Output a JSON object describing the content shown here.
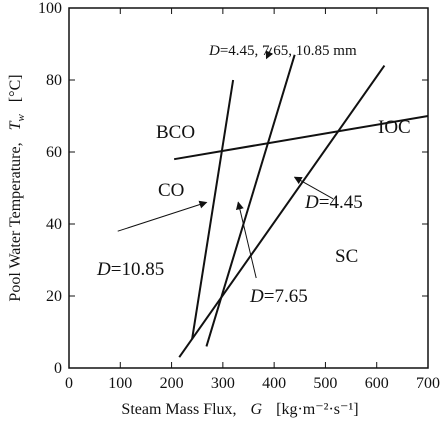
{
  "chart_data": {
    "type": "line",
    "xlabel_text": "Steam Mass Flux,",
    "xlabel_sym": "G",
    "xlabel_unit": "[kg·m⁻²·s⁻¹]",
    "ylabel_text": "Pool Water Temperature,",
    "ylabel_sym": "T",
    "ylabel_sub": "w",
    "ylabel_unit": "[°C]",
    "xlim": [
      0,
      700
    ],
    "ylim": [
      0,
      100
    ],
    "xticks": [
      "0",
      "100",
      "200",
      "300",
      "400",
      "500",
      "600",
      "700"
    ],
    "yticks": [
      "0",
      "20",
      "40",
      "60",
      "80",
      "100"
    ],
    "series": [
      {
        "x": [
          240,
          320
        ],
        "y": [
          8,
          80
        ]
      },
      {
        "x": [
          215,
          615
        ],
        "y": [
          3,
          84
        ]
      },
      {
        "x": [
          268,
          440
        ],
        "y": [
          6,
          87
        ]
      },
      {
        "x": [
          205,
          700
        ],
        "y": [
          58,
          70
        ]
      }
    ],
    "regions": [
      "BCO",
      "CO",
      "IOC",
      "SC"
    ],
    "annotations": {
      "top": "D=4.45,  7.65, 10.85 mm",
      "d445": "D=4.45",
      "d765": "D=7.65",
      "d1085": "D=10.85"
    }
  }
}
